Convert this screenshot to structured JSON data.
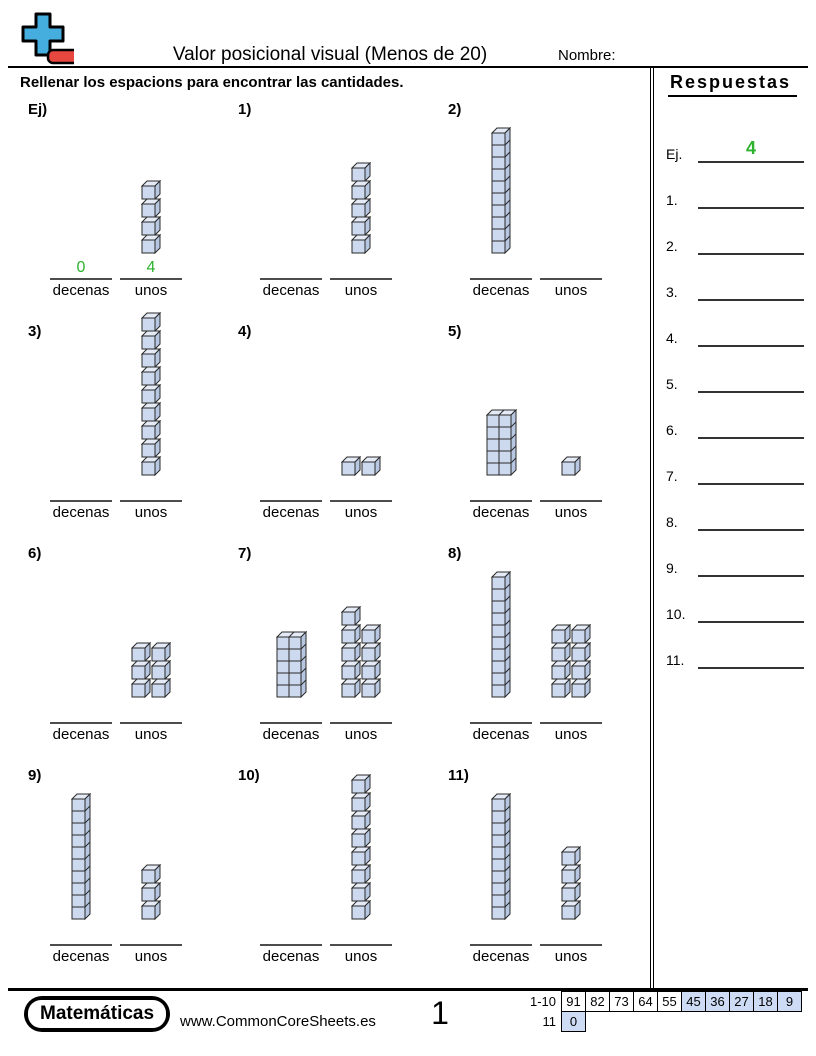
{
  "header": {
    "title": "Valor posicional visual (Menos de 20)",
    "name_label": "Nombre:",
    "logo_plus_color": "#45aede",
    "logo_minus_color": "#e8473f"
  },
  "instruction": "Rellenar los espacions para encontrar las cantidades.",
  "labels": {
    "tens": "decenas",
    "ones": "unos"
  },
  "answer_color": "#2db22d",
  "cube_colors": {
    "front": "#ccd9ee",
    "top": "#e4ebf7",
    "side": "#b7c7e2",
    "outline": "#2a2a2a"
  },
  "problems": [
    {
      "label": "Ej)",
      "tens": 0,
      "tens_style": null,
      "ones": 4,
      "ones_layout": "column",
      "answer_tens": "0",
      "answer_ones": "4"
    },
    {
      "label": "1)",
      "tens": 0,
      "tens_style": null,
      "ones": 5,
      "ones_layout": "column",
      "answer_tens": "",
      "answer_ones": ""
    },
    {
      "label": "2)",
      "tens": 1,
      "tens_style": "rod",
      "ones": 0,
      "ones_layout": "column",
      "answer_tens": "",
      "answer_ones": ""
    },
    {
      "label": "3)",
      "tens": 0,
      "tens_style": null,
      "ones": 9,
      "ones_layout": "column",
      "answer_tens": "",
      "answer_ones": ""
    },
    {
      "label": "4)",
      "tens": 0,
      "tens_style": null,
      "ones": 2,
      "ones_layout": "grid2",
      "answer_tens": "",
      "answer_ones": ""
    },
    {
      "label": "5)",
      "tens": 1,
      "tens_style": "block",
      "ones": 1,
      "ones_layout": "column",
      "answer_tens": "",
      "answer_ones": ""
    },
    {
      "label": "6)",
      "tens": 0,
      "tens_style": null,
      "ones": 6,
      "ones_layout": "grid2",
      "answer_tens": "",
      "answer_ones": ""
    },
    {
      "label": "7)",
      "tens": 1,
      "tens_style": "block",
      "ones": 9,
      "ones_layout": "grid2",
      "answer_tens": "",
      "answer_ones": ""
    },
    {
      "label": "8)",
      "tens": 1,
      "tens_style": "rod",
      "ones": 8,
      "ones_layout": "grid2",
      "answer_tens": "",
      "answer_ones": ""
    },
    {
      "label": "9)",
      "tens": 1,
      "tens_style": "rod",
      "ones": 3,
      "ones_layout": "column",
      "answer_tens": "",
      "answer_ones": ""
    },
    {
      "label": "10)",
      "tens": 0,
      "tens_style": null,
      "ones": 8,
      "ones_layout": "column",
      "answer_tens": "",
      "answer_ones": ""
    },
    {
      "label": "11)",
      "tens": 1,
      "tens_style": "rod",
      "ones": 4,
      "ones_layout": "column",
      "answer_tens": "",
      "answer_ones": ""
    }
  ],
  "sidebar": {
    "title": "Respuestas",
    "rows": [
      {
        "label": "Ej.",
        "value": "4"
      },
      {
        "label": "1.",
        "value": ""
      },
      {
        "label": "2.",
        "value": ""
      },
      {
        "label": "3.",
        "value": ""
      },
      {
        "label": "4.",
        "value": ""
      },
      {
        "label": "5.",
        "value": ""
      },
      {
        "label": "6.",
        "value": ""
      },
      {
        "label": "7.",
        "value": ""
      },
      {
        "label": "8.",
        "value": ""
      },
      {
        "label": "9.",
        "value": ""
      },
      {
        "label": "10.",
        "value": ""
      },
      {
        "label": "11.",
        "value": ""
      }
    ]
  },
  "footer": {
    "brand": "Matemáticas",
    "website": "www.CommonCoreSheets.es",
    "page_number": "1",
    "score_table": {
      "row1_label": "1-10",
      "row1_values": [
        "91",
        "82",
        "73",
        "64",
        "55",
        "45",
        "36",
        "27",
        "18",
        "9"
      ],
      "row1_highlighted": [
        false,
        false,
        false,
        false,
        false,
        true,
        true,
        true,
        true,
        true
      ],
      "row2_label": "11",
      "row2_values": [
        "0"
      ],
      "row2_highlighted": [
        true
      ],
      "highlight_color": "#cddcf4"
    }
  }
}
